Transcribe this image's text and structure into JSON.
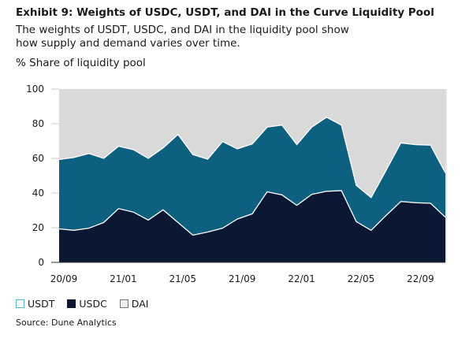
{
  "chart_data": {
    "type": "area",
    "stacked": true,
    "title": "Exhibit 9: Weights of USDC, USDT, and DAI in the Curve Liquidity Pool",
    "subtitle": "The weights of USDT, USDC, and DAI in the liquidity pool show how supply and demand varies over time.",
    "ylabel": "% Share of liquidity pool",
    "xlabel": "",
    "ylim": [
      0,
      100
    ],
    "yticks": [
      0,
      20,
      40,
      60,
      80,
      100
    ],
    "x": [
      "20/09",
      "20/10",
      "20/11",
      "20/12",
      "21/01",
      "21/02",
      "21/03",
      "21/04",
      "21/05",
      "21/06",
      "21/07",
      "21/08",
      "21/09",
      "21/10",
      "21/11",
      "21/12",
      "22/01",
      "22/02",
      "22/03",
      "22/04",
      "22/05",
      "22/06",
      "22/07",
      "22/08",
      "22/09",
      "22/10",
      "22/11"
    ],
    "xtick_labels": [
      "20/09",
      "21/01",
      "21/05",
      "21/09",
      "22/01",
      "22/05",
      "22/09"
    ],
    "grid": false,
    "legend_position": "bottom-left",
    "series": [
      {
        "name": "USDC",
        "color": "#0b1733",
        "values": [
          19.3,
          18.5,
          19.7,
          23,
          31,
          29,
          24.4,
          30.3,
          23,
          15.7,
          17.5,
          19.7,
          25,
          28,
          40.7,
          38.9,
          32.9,
          39.2,
          41,
          41.4,
          23.5,
          18.5,
          27,
          35.1,
          34.4,
          34.1,
          26
        ]
      },
      {
        "name": "USDT",
        "color": "#0e6080",
        "values": [
          40,
          42,
          43.1,
          37,
          36,
          36,
          35.6,
          35.7,
          50.8,
          46.5,
          42,
          50,
          40.5,
          40.3,
          37.3,
          40.3,
          35,
          38.8,
          42.7,
          37.8,
          20.9,
          18.9,
          26,
          33.8,
          33.5,
          33.5,
          25.6
        ]
      },
      {
        "name": "DAI",
        "color": "#d9d9d9",
        "values": [
          40.7,
          39.5,
          37.2,
          40,
          33,
          35,
          40,
          34,
          26.2,
          37.8,
          40.5,
          30.3,
          34.5,
          31.7,
          22,
          20.8,
          32.1,
          22,
          16.3,
          20.8,
          55.6,
          62.6,
          47,
          31.1,
          32.1,
          32.4,
          48.4
        ]
      }
    ],
    "legend": [
      {
        "name": "USDT",
        "swatch": "#4fb8c9"
      },
      {
        "name": "USDC",
        "swatch": "#0b1733"
      },
      {
        "name": "DAI",
        "swatch": "#e8e8e8"
      }
    ],
    "source": "Source: Dune Analytics"
  }
}
